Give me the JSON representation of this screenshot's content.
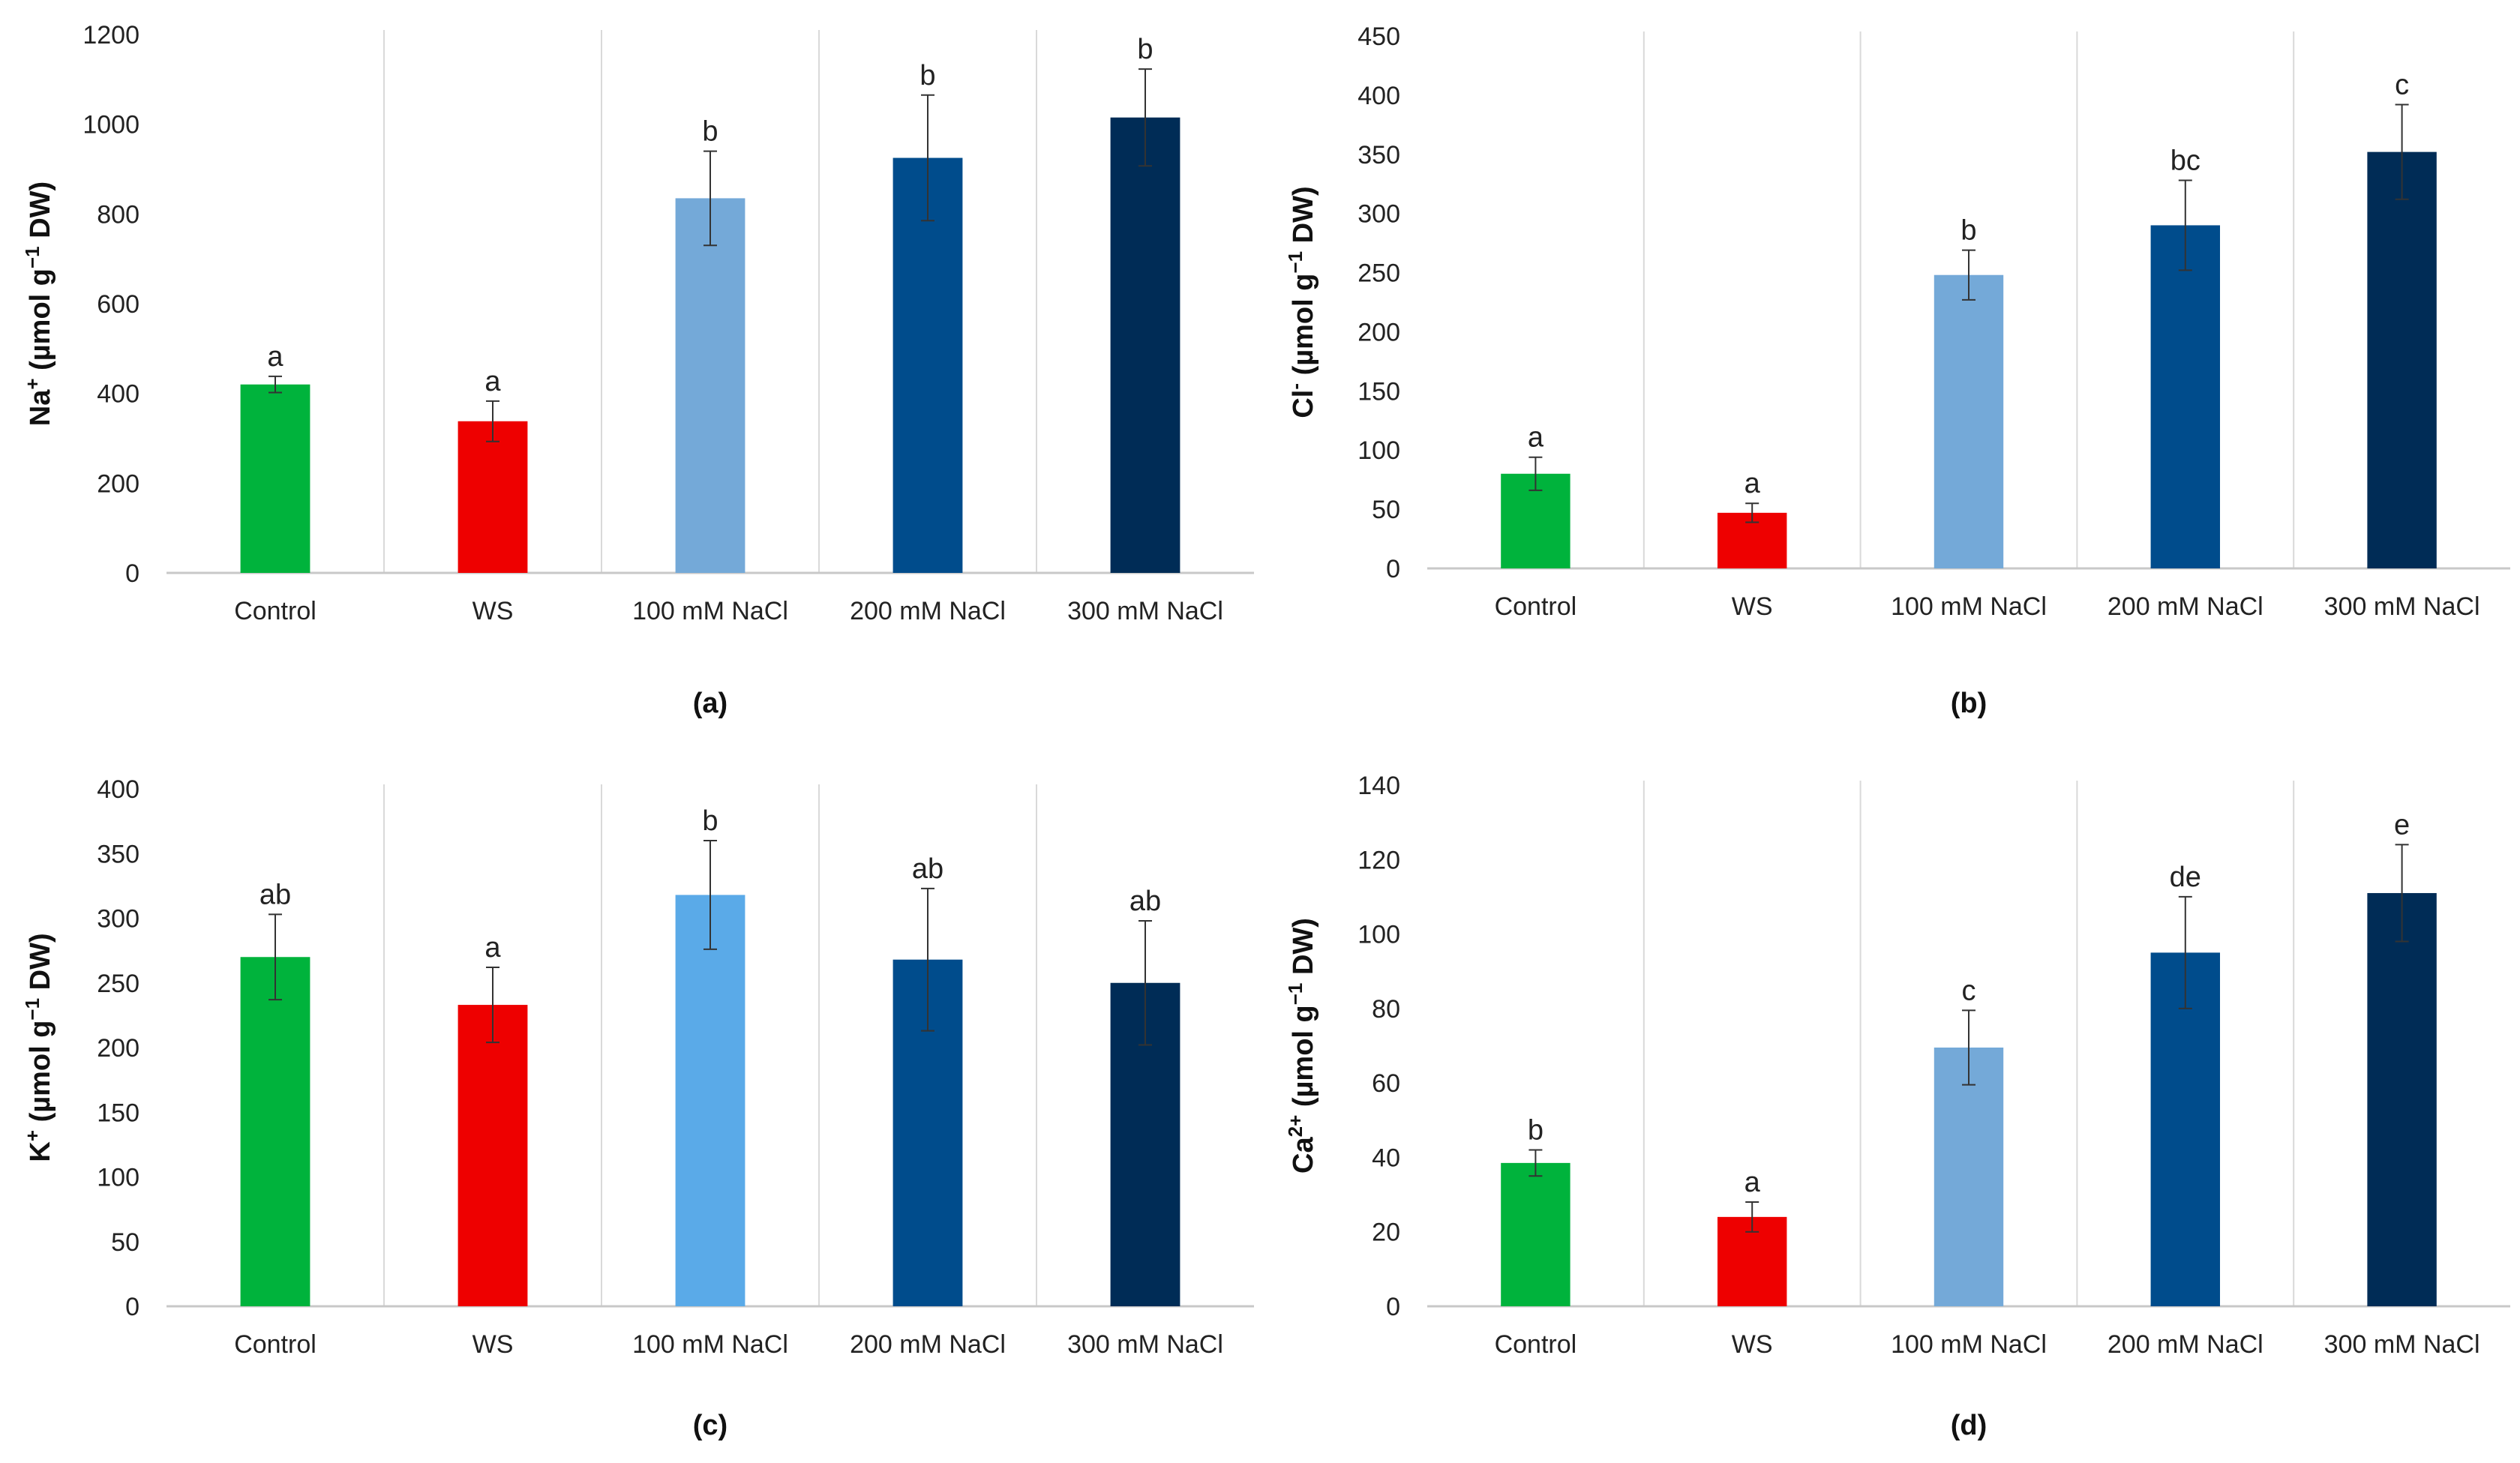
{
  "chart_data": [
    {
      "type": "bar",
      "panel_label": "(a)",
      "ylabel_main": "Na",
      "ylabel_sup": "+",
      "ylabel_unit": " (µmol g",
      "ylabel_unit_sup": "−1",
      "ylabel_tail": " DW)",
      "ylim": [
        0,
        1200
      ],
      "yticks": [
        0,
        200,
        400,
        600,
        800,
        1000,
        1200
      ],
      "categories": [
        "Control",
        "WS",
        "100 mM NaCl",
        "200 mM NaCl",
        "300 mM NaCl"
      ],
      "values": [
        420,
        338,
        835,
        925,
        1015
      ],
      "errors": [
        18,
        45,
        105,
        140,
        108
      ],
      "significance": [
        "a",
        "a",
        "b",
        "b",
        "b"
      ],
      "colors": [
        "#00b33c",
        "#ee0000",
        "#74a9d8",
        "#004c8c",
        "#002c56"
      ]
    },
    {
      "type": "bar",
      "panel_label": "(b)",
      "ylabel_main": "Cl",
      "ylabel_sup": "-",
      "ylabel_unit": " (µmol g",
      "ylabel_unit_sup": "−1",
      "ylabel_tail": " DW)",
      "ylim": [
        0,
        450
      ],
      "yticks": [
        0,
        50,
        100,
        150,
        200,
        250,
        300,
        350,
        400,
        450
      ],
      "categories": [
        "Control",
        "WS",
        "100 mM NaCl",
        "200 mM NaCl",
        "300 mM NaCl"
      ],
      "values": [
        80,
        47,
        248,
        290,
        352
      ],
      "errors": [
        14,
        8,
        21,
        38,
        40
      ],
      "significance": [
        "a",
        "a",
        "b",
        "bc",
        "c"
      ],
      "colors": [
        "#00b33c",
        "#ee0000",
        "#74a9d8",
        "#004c8c",
        "#002c56"
      ]
    },
    {
      "type": "bar",
      "panel_label": "(c)",
      "ylabel_main": "K",
      "ylabel_sup": "+",
      "ylabel_unit": " (µmol g",
      "ylabel_unit_sup": "−1",
      "ylabel_tail": " DW)",
      "ylim": [
        0,
        400
      ],
      "yticks": [
        0,
        50,
        100,
        150,
        200,
        250,
        300,
        350,
        400
      ],
      "categories": [
        "Control",
        "WS",
        "100 mM NaCl",
        "200 mM NaCl",
        "300 mM NaCl"
      ],
      "values": [
        270,
        233,
        318,
        268,
        250
      ],
      "errors": [
        33,
        29,
        42,
        55,
        48
      ],
      "significance": [
        "ab",
        "a",
        "b",
        "ab",
        "ab"
      ],
      "colors": [
        "#00b33c",
        "#ee0000",
        "#5aaae8",
        "#004c8c",
        "#002c56"
      ]
    },
    {
      "type": "bar",
      "panel_label": "(d)",
      "ylabel_main": "Ca",
      "ylabel_sup": "2+",
      "ylabel_unit": " (µmol g",
      "ylabel_unit_sup": "−1",
      "ylabel_tail": " DW)",
      "ylim": [
        0,
        140
      ],
      "yticks": [
        0,
        20,
        40,
        60,
        80,
        100,
        120,
        140
      ],
      "categories": [
        "Control",
        "WS",
        "100 mM NaCl",
        "200 mM NaCl",
        "300 mM NaCl"
      ],
      "values": [
        38.5,
        24,
        69.5,
        95,
        111
      ],
      "errors": [
        3.5,
        4,
        10,
        15,
        13
      ],
      "significance": [
        "b",
        "a",
        "c",
        "de",
        "e"
      ],
      "colors": [
        "#00b33c",
        "#ee0000",
        "#74a9d8",
        "#004c8c",
        "#002c56"
      ]
    }
  ]
}
